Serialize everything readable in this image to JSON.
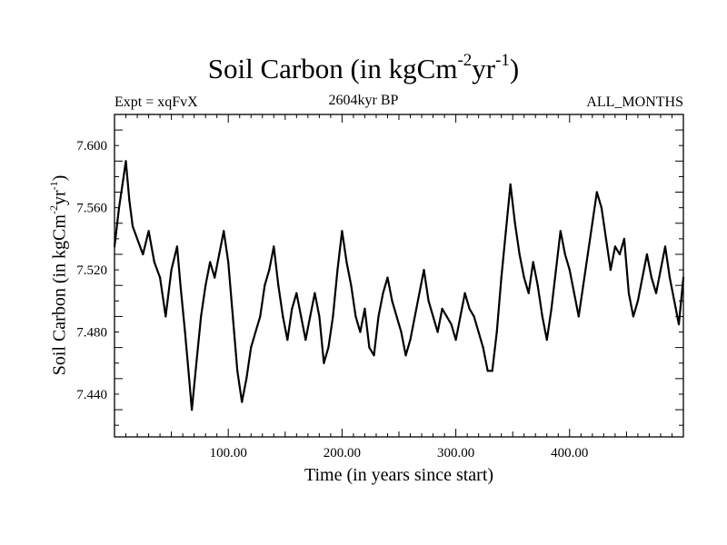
{
  "header": {
    "title": "Soil Carbon (in kgCm",
    "title_sup1": "-2",
    "title_mid": "yr",
    "title_sup2": "-1",
    "title_end": ")",
    "expt": "Expt = xqFvX",
    "time": "2604kyr BP",
    "months": "ALL_MONTHS"
  },
  "chart_data": {
    "type": "line",
    "title": "Soil Carbon (in kgCm-2yr-1)",
    "xlabel": "Time (in years since start)",
    "ylabel_parts": {
      "base": "Soil Carbon (in kgCm",
      "sup1": "-2",
      "mid": "yr",
      "sup2": "-1",
      "end": ")"
    },
    "xlim": [
      0,
      500
    ],
    "ylim": [
      7.4125,
      7.62
    ],
    "x_ticks": [
      100,
      200,
      300,
      400
    ],
    "x_tick_labels": [
      "100.00",
      "200.00",
      "300.00",
      "400.00"
    ],
    "y_ticks": [
      7.44,
      7.48,
      7.52,
      7.56,
      7.6
    ],
    "y_tick_labels": [
      "7.440",
      "7.480",
      "7.520",
      "7.560",
      "7.600"
    ],
    "series": [
      {
        "name": "Soil Carbon",
        "color": "#000000",
        "x": [
          0,
          4,
          7,
          10,
          13,
          16,
          20,
          25,
          30,
          35,
          40,
          45,
          50,
          55,
          58,
          62,
          65,
          68,
          72,
          76,
          80,
          84,
          88,
          92,
          96,
          100,
          104,
          108,
          112,
          116,
          120,
          124,
          128,
          132,
          136,
          140,
          144,
          148,
          152,
          156,
          160,
          164,
          168,
          172,
          176,
          180,
          184,
          188,
          192,
          196,
          200,
          204,
          208,
          212,
          216,
          220,
          224,
          228,
          232,
          236,
          240,
          244,
          248,
          252,
          256,
          260,
          264,
          268,
          272,
          276,
          280,
          284,
          288,
          292,
          296,
          300,
          304,
          308,
          312,
          316,
          320,
          324,
          328,
          332,
          336,
          340,
          344,
          348,
          352,
          356,
          360,
          364,
          368,
          372,
          376,
          380,
          384,
          388,
          392,
          396,
          400,
          404,
          408,
          412,
          416,
          420,
          424,
          428,
          432,
          436,
          440,
          444,
          448,
          452,
          456,
          460,
          464,
          468,
          472,
          476,
          480,
          484,
          488,
          492,
          496,
          500
        ],
        "values": [
          7.535,
          7.56,
          7.575,
          7.59,
          7.565,
          7.548,
          7.54,
          7.53,
          7.545,
          7.525,
          7.515,
          7.49,
          7.52,
          7.535,
          7.51,
          7.48,
          7.455,
          7.43,
          7.46,
          7.49,
          7.51,
          7.525,
          7.515,
          7.53,
          7.545,
          7.525,
          7.49,
          7.455,
          7.435,
          7.45,
          7.47,
          7.48,
          7.49,
          7.51,
          7.52,
          7.535,
          7.51,
          7.49,
          7.475,
          7.495,
          7.505,
          7.49,
          7.475,
          7.49,
          7.505,
          7.49,
          7.46,
          7.47,
          7.49,
          7.52,
          7.545,
          7.525,
          7.51,
          7.49,
          7.48,
          7.495,
          7.47,
          7.465,
          7.49,
          7.505,
          7.515,
          7.5,
          7.49,
          7.48,
          7.465,
          7.475,
          7.49,
          7.505,
          7.52,
          7.5,
          7.49,
          7.48,
          7.495,
          7.49,
          7.485,
          7.475,
          7.49,
          7.505,
          7.495,
          7.49,
          7.48,
          7.47,
          7.455,
          7.455,
          7.48,
          7.515,
          7.545,
          7.575,
          7.55,
          7.53,
          7.515,
          7.505,
          7.525,
          7.51,
          7.49,
          7.475,
          7.495,
          7.52,
          7.545,
          7.53,
          7.52,
          7.505,
          7.49,
          7.51,
          7.53,
          7.55,
          7.57,
          7.56,
          7.54,
          7.52,
          7.535,
          7.53,
          7.54,
          7.505,
          7.49,
          7.5,
          7.515,
          7.53,
          7.515,
          7.505,
          7.52,
          7.535,
          7.515,
          7.5,
          7.485,
          7.515
        ]
      }
    ]
  }
}
